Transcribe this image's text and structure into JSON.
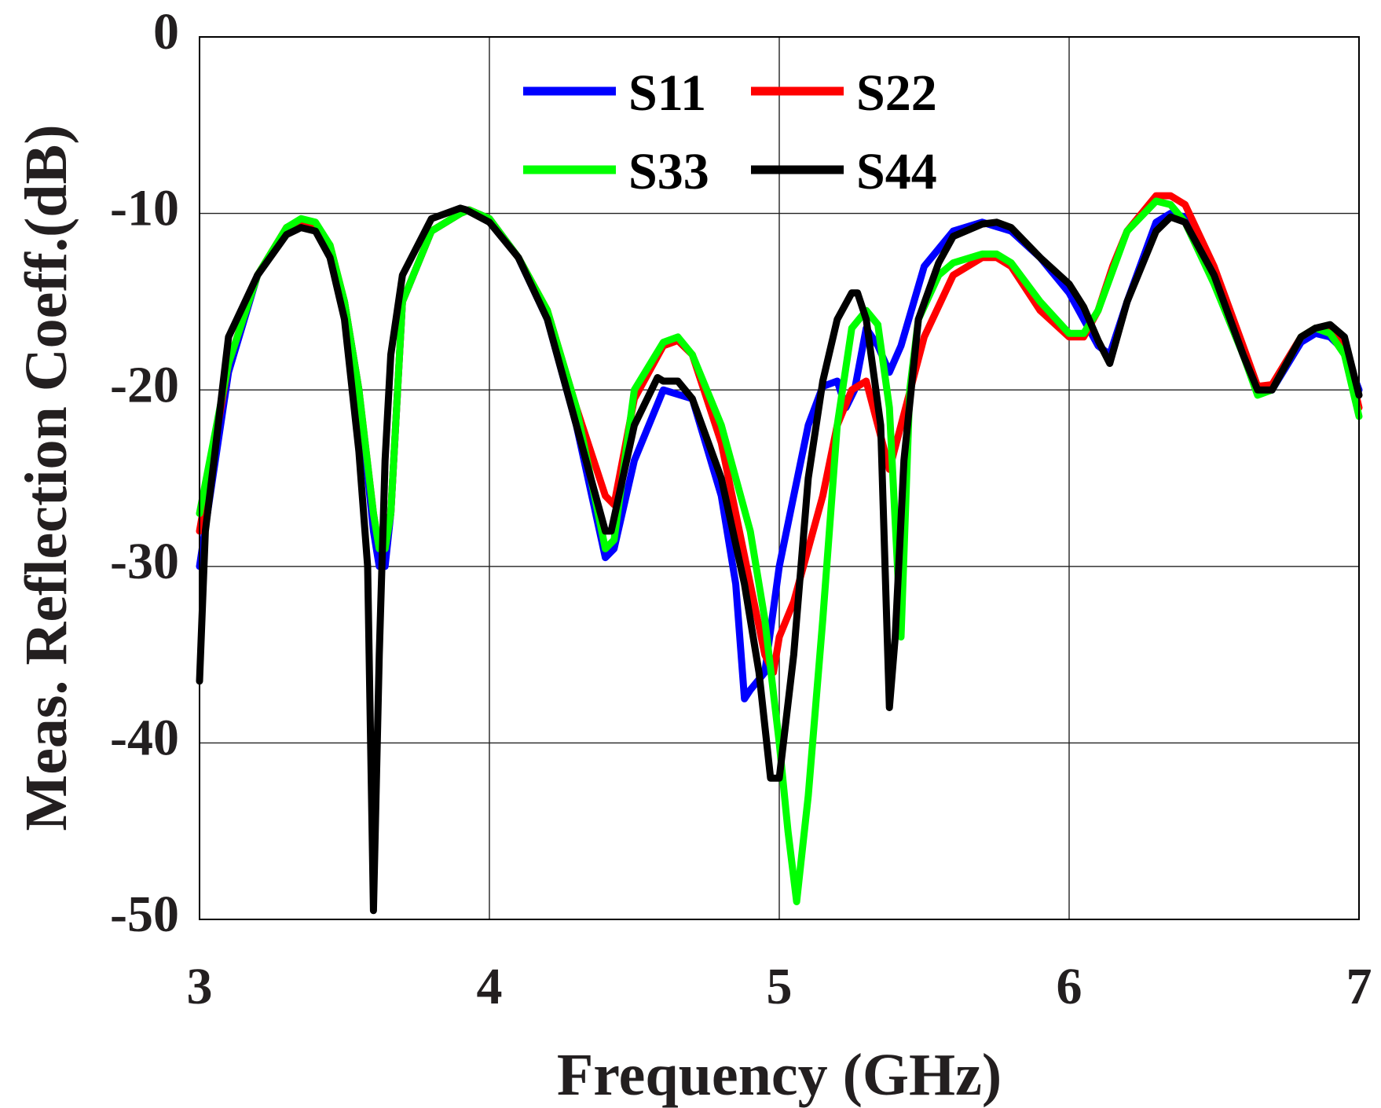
{
  "chart_data": {
    "type": "line",
    "title": "",
    "xlabel": "Frequency (GHz)",
    "ylabel": "Meas. Reflection Coeff.(dB)",
    "xlim": [
      3,
      7
    ],
    "ylim": [
      -50,
      0
    ],
    "xticks": [
      3,
      4,
      5,
      6,
      7
    ],
    "xtick_labels": [
      "3",
      "4",
      "5",
      "6",
      "7"
    ],
    "yticks": [
      0,
      -10,
      -20,
      -30,
      -40,
      -50
    ],
    "ytick_labels": [
      "0",
      "-10",
      "-20",
      "-30",
      "-40",
      "-50"
    ],
    "grid": true,
    "legend_position": "top-center",
    "series": [
      {
        "name": "S11",
        "color": "#0000ff",
        "x": [
          3.0,
          3.1,
          3.2,
          3.3,
          3.35,
          3.4,
          3.45,
          3.5,
          3.55,
          3.6,
          3.62,
          3.64,
          3.66,
          3.7,
          3.8,
          3.9,
          3.93,
          4.0,
          4.1,
          4.2,
          4.3,
          4.4,
          4.43,
          4.5,
          4.6,
          4.7,
          4.8,
          4.85,
          4.88,
          4.9,
          4.95,
          5.0,
          5.05,
          5.1,
          5.15,
          5.2,
          5.23,
          5.26,
          5.3,
          5.34,
          5.38,
          5.42,
          5.5,
          5.6,
          5.7,
          5.8,
          5.9,
          6.0,
          6.05,
          6.1,
          6.14,
          6.2,
          6.3,
          6.35,
          6.4,
          6.5,
          6.6,
          6.65,
          6.7,
          6.8,
          6.85,
          6.9,
          6.95,
          7.0
        ],
        "y": [
          -30,
          -19,
          -13.5,
          -11,
          -10.6,
          -10.8,
          -12,
          -15,
          -20,
          -28,
          -30,
          -30,
          -27,
          -15,
          -11,
          -10,
          -9.8,
          -10.3,
          -12.5,
          -16,
          -22,
          -29.5,
          -29,
          -24,
          -20,
          -20.5,
          -26,
          -31,
          -37.5,
          -37,
          -36,
          -30,
          -26,
          -22,
          -19.8,
          -19.5,
          -21,
          -20,
          -16.5,
          -17.5,
          -19,
          -17.5,
          -13,
          -11,
          -10.5,
          -11,
          -12.5,
          -14.5,
          -16,
          -17.5,
          -18,
          -15,
          -10.5,
          -10,
          -10.2,
          -13.5,
          -18,
          -19.8,
          -20,
          -17.3,
          -16.8,
          -17,
          -17.8,
          -20
        ]
      },
      {
        "name": "S22",
        "color": "#ff0000",
        "x": [
          3.0,
          3.1,
          3.2,
          3.3,
          3.35,
          3.4,
          3.45,
          3.5,
          3.55,
          3.6,
          3.62,
          3.64,
          3.66,
          3.7,
          3.8,
          3.9,
          3.93,
          4.0,
          4.1,
          4.2,
          4.3,
          4.4,
          4.43,
          4.5,
          4.6,
          4.65,
          4.7,
          4.8,
          4.9,
          4.95,
          4.98,
          5.0,
          5.05,
          5.1,
          5.15,
          5.2,
          5.25,
          5.3,
          5.34,
          5.38,
          5.42,
          5.5,
          5.6,
          5.7,
          5.75,
          5.8,
          5.9,
          6.0,
          6.05,
          6.1,
          6.15,
          6.2,
          6.3,
          6.35,
          6.4,
          6.5,
          6.6,
          6.65,
          6.7,
          6.8,
          6.85,
          6.9,
          6.95,
          7.0
        ],
        "y": [
          -28,
          -18.5,
          -13.5,
          -10.8,
          -10.4,
          -10.6,
          -11.8,
          -15,
          -20,
          -27,
          -29,
          -29,
          -27,
          -15,
          -11,
          -10,
          -9.8,
          -10.3,
          -12.5,
          -15.5,
          -21,
          -26,
          -26.5,
          -20.5,
          -17.5,
          -17.2,
          -18,
          -23,
          -31,
          -35,
          -36,
          -34,
          -32,
          -29,
          -26,
          -22,
          -20,
          -19.5,
          -22,
          -24.5,
          -22,
          -17,
          -13.5,
          -12.5,
          -12.5,
          -13,
          -15.5,
          -17,
          -17,
          -15.5,
          -13,
          -11,
          -9,
          -9,
          -9.5,
          -13,
          -17.5,
          -19.8,
          -19.7,
          -17,
          -16.5,
          -16.5,
          -17.5,
          -21
        ]
      },
      {
        "name": "S33",
        "color": "#00ff00",
        "x": [
          3.0,
          3.1,
          3.2,
          3.3,
          3.35,
          3.4,
          3.45,
          3.5,
          3.55,
          3.6,
          3.62,
          3.64,
          3.66,
          3.7,
          3.8,
          3.9,
          3.93,
          4.0,
          4.1,
          4.2,
          4.3,
          4.4,
          4.43,
          4.5,
          4.6,
          4.65,
          4.7,
          4.8,
          4.9,
          4.95,
          5.0,
          5.03,
          5.06,
          5.1,
          5.15,
          5.2,
          5.25,
          5.3,
          5.34,
          5.38,
          5.42,
          5.45,
          5.48,
          5.55,
          5.6,
          5.7,
          5.75,
          5.8,
          5.9,
          6.0,
          6.05,
          6.1,
          6.2,
          6.3,
          6.35,
          6.4,
          6.5,
          6.6,
          6.65,
          6.7,
          6.8,
          6.85,
          6.9,
          6.95,
          7.0
        ],
        "y": [
          -27,
          -18.5,
          -13.5,
          -10.8,
          -10.3,
          -10.5,
          -11.8,
          -15,
          -20,
          -27,
          -29,
          -29,
          -27,
          -15,
          -11,
          -10,
          -9.8,
          -10.3,
          -12.5,
          -15.5,
          -21,
          -29,
          -28.5,
          -20,
          -17.3,
          -17,
          -18,
          -22,
          -28,
          -33,
          -40,
          -45,
          -49,
          -43,
          -33,
          -22,
          -16.5,
          -15.5,
          -16.3,
          -21,
          -34,
          -20,
          -16,
          -13.5,
          -12.8,
          -12.3,
          -12.3,
          -12.8,
          -15,
          -16.8,
          -16.8,
          -15.5,
          -11,
          -9.3,
          -9.5,
          -10.5,
          -14,
          -18,
          -20.3,
          -20,
          -17,
          -16.5,
          -16.8,
          -18,
          -21.5
        ]
      },
      {
        "name": "S44",
        "color": "#000000",
        "x": [
          3.0,
          3.02,
          3.05,
          3.1,
          3.2,
          3.3,
          3.35,
          3.4,
          3.45,
          3.5,
          3.55,
          3.58,
          3.6,
          3.62,
          3.64,
          3.66,
          3.7,
          3.8,
          3.9,
          3.92,
          4.0,
          4.1,
          4.2,
          4.3,
          4.4,
          4.42,
          4.5,
          4.58,
          4.6,
          4.65,
          4.7,
          4.8,
          4.88,
          4.93,
          4.97,
          5.0,
          5.05,
          5.1,
          5.15,
          5.2,
          5.25,
          5.27,
          5.3,
          5.35,
          5.38,
          5.4,
          5.43,
          5.48,
          5.55,
          5.6,
          5.7,
          5.75,
          5.8,
          5.9,
          6.0,
          6.05,
          6.1,
          6.14,
          6.2,
          6.3,
          6.35,
          6.4,
          6.5,
          6.6,
          6.65,
          6.7,
          6.8,
          6.85,
          6.9,
          6.95,
          7.0
        ],
        "y": [
          -36.5,
          -28,
          -24,
          -17,
          -13.5,
          -11.2,
          -10.8,
          -11,
          -12.5,
          -16,
          -23.5,
          -30,
          -49.5,
          -35,
          -24,
          -18,
          -13.5,
          -10.3,
          -9.7,
          -9.8,
          -10.5,
          -12.5,
          -16,
          -22,
          -28,
          -28,
          -22,
          -19.3,
          -19.5,
          -19.5,
          -20.5,
          -25,
          -31,
          -36,
          -42,
          -42,
          -35,
          -25,
          -19.5,
          -16,
          -14.5,
          -14.5,
          -16,
          -22,
          -38,
          -34,
          -24,
          -16,
          -12.8,
          -11.3,
          -10.6,
          -10.5,
          -10.8,
          -12.5,
          -14,
          -15.3,
          -17.2,
          -18.5,
          -15,
          -11,
          -10.2,
          -10.5,
          -13.5,
          -18,
          -20,
          -20,
          -17,
          -16.5,
          -16.3,
          -17,
          -20.3
        ]
      }
    ]
  }
}
